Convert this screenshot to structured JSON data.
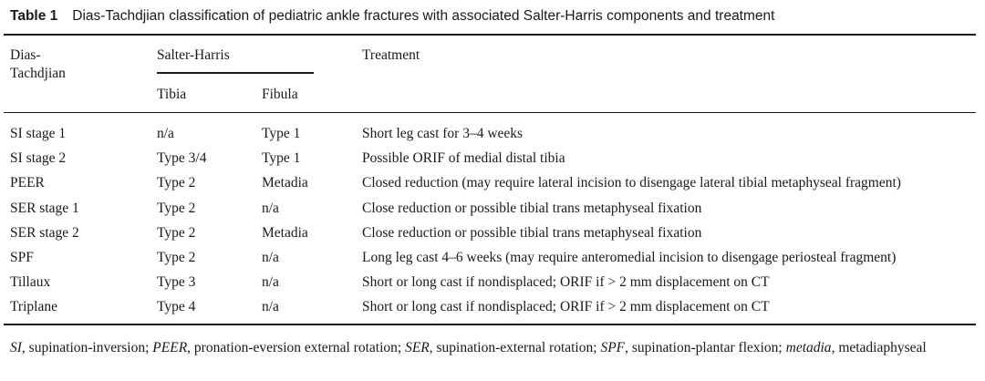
{
  "caption": {
    "label": "Table 1",
    "text": "Dias-Tachdjian classification of pediatric ankle fractures with associated Salter-Harris components and treatment"
  },
  "headers": {
    "dias_line1": "Dias-",
    "dias_line2": "Tachdjian",
    "salter_harris": "Salter-Harris",
    "tibia": "Tibia",
    "fibula": "Fibula",
    "treatment": "Treatment"
  },
  "rows": [
    {
      "dias": "SI stage 1",
      "tibia": "n/a",
      "fibula": "Type 1",
      "treatment": "Short leg cast for 3–4 weeks"
    },
    {
      "dias": "SI stage 2",
      "tibia": "Type 3/4",
      "fibula": "Type 1",
      "treatment": "Possible ORIF of medial distal tibia"
    },
    {
      "dias": "PEER",
      "tibia": "Type 2",
      "fibula": "Metadia",
      "treatment": "Closed reduction (may require lateral incision to disengage lateral tibial metaphyseal fragment)"
    },
    {
      "dias": "SER stage 1",
      "tibia": "Type 2",
      "fibula": "n/a",
      "treatment": "Close reduction or possible tibial trans metaphyseal fixation"
    },
    {
      "dias": "SER stage 2",
      "tibia": "Type 2",
      "fibula": "Metadia",
      "treatment": "Close reduction or possible tibial trans metaphyseal fixation"
    },
    {
      "dias": "SPF",
      "tibia": "Type 2",
      "fibula": "n/a",
      "treatment": "Long leg cast 4–6 weeks (may require anteromedial incision to disengage periosteal fragment)"
    },
    {
      "dias": "Tillaux",
      "tibia": "Type 3",
      "fibula": "n/a",
      "treatment": "Short or long cast if nondisplaced; ORIF if > 2 mm displacement on CT"
    },
    {
      "dias": "Triplane",
      "tibia": "Type 4",
      "fibula": "n/a",
      "treatment": "Short or long cast if nondisplaced; ORIF if > 2 mm displacement on CT"
    }
  ],
  "footnote": [
    {
      "abbr": "SI",
      "def": ", supination-inversion; "
    },
    {
      "abbr": "PEER",
      "def": ", pronation-eversion external rotation; "
    },
    {
      "abbr": "SER",
      "def": ", supination-external rotation; "
    },
    {
      "abbr": "SPF",
      "def": ", supination-plantar flexion; "
    },
    {
      "abbr": "metadia",
      "def": ", metadiaphyseal"
    }
  ]
}
